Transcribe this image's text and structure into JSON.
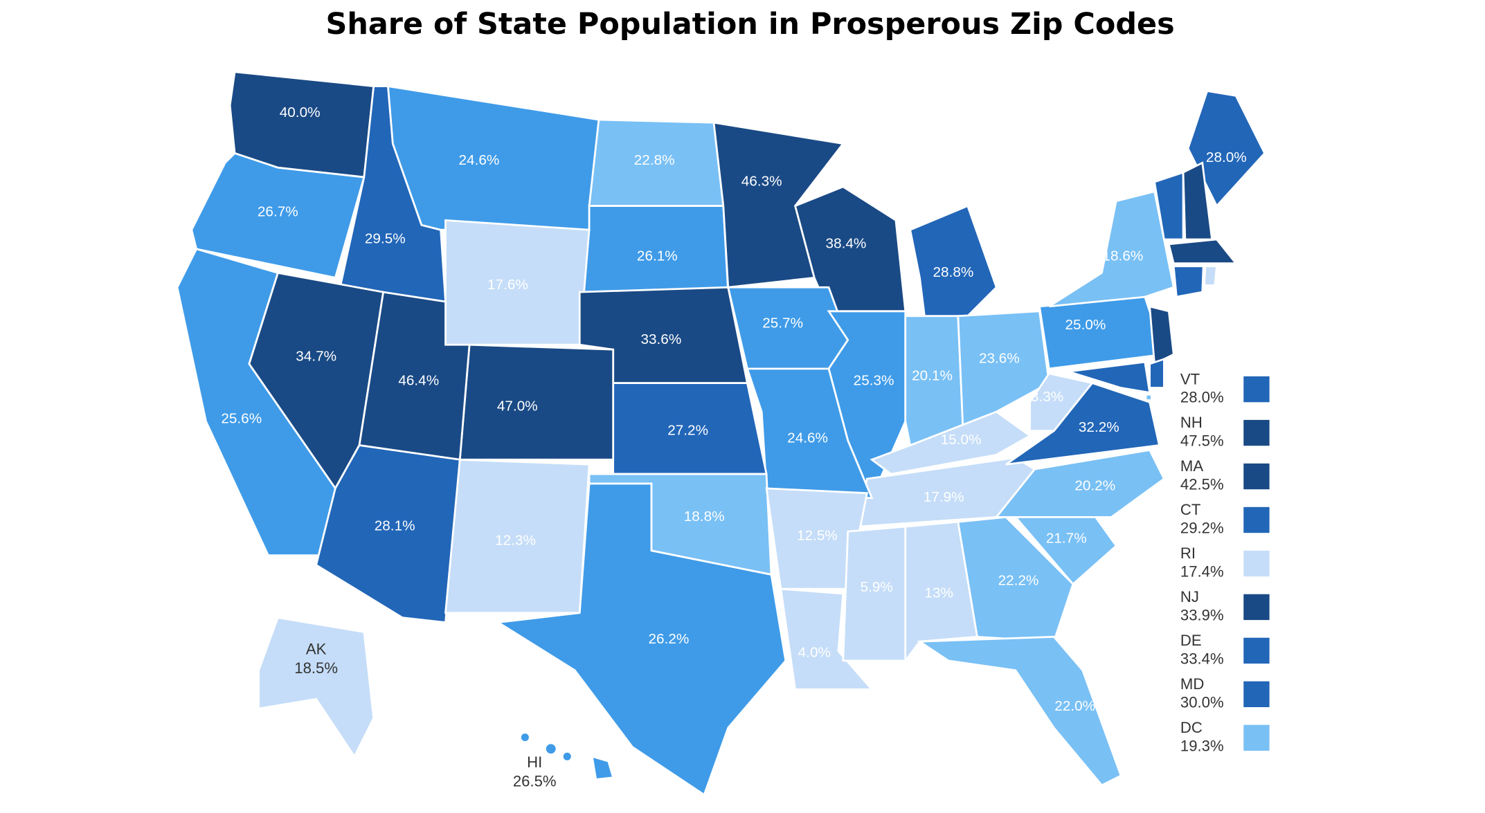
{
  "chart_data": {
    "type": "choropleth",
    "title": "Share of State Population in Prosperous Zip Codes",
    "regions": [
      {
        "value": 40.0,
        "value_label": "40.0%",
        "color": "#1a4a85"
      },
      {
        "value": 26.7,
        "value_label": "26.7%",
        "color": "#3f9be8"
      },
      {
        "value": 29.5,
        "value_label": "29.5%",
        "color": "#2266b8"
      },
      {
        "value": 24.6,
        "value_label": "24.6%",
        "color": "#3f9be8"
      },
      {
        "value": 22.8,
        "value_label": "22.8%",
        "color": "#79c0f5"
      },
      {
        "value": 26.1,
        "value_label": "26.1%",
        "color": "#3f9be8"
      },
      {
        "value": 17.6,
        "value_label": "17.6%",
        "color": "#c5ddf8"
      },
      {
        "value": 33.6,
        "value_label": "33.6%",
        "color": "#1a4a85"
      },
      {
        "value": 46.3,
        "value_label": "46.3%",
        "color": "#1a4a85"
      },
      {
        "value": 38.4,
        "value_label": "38.4%",
        "color": "#1a4a85"
      },
      {
        "value": 28.8,
        "value_label": "28.8%",
        "color": "#2266b8"
      },
      {
        "value": 25.7,
        "value_label": "25.7%",
        "color": "#3f9be8"
      },
      {
        "value": 25.3,
        "value_label": "25.3%",
        "color": "#3f9be8"
      },
      {
        "value": 20.1,
        "value_label": "20.1%",
        "color": "#79c0f5"
      },
      {
        "value": 23.6,
        "value_label": "23.6%",
        "color": "#79c0f5"
      },
      {
        "value": 15.0,
        "value_label": "15.0%",
        "color": "#c5ddf8"
      },
      {
        "value": 17.9,
        "value_label": "17.9%",
        "color": "#c5ddf8"
      },
      {
        "value": 24.6,
        "value_label": "24.6%",
        "color": "#3f9be8"
      },
      {
        "value": 27.2,
        "value_label": "27.2%",
        "color": "#2266b8"
      },
      {
        "value": 47.0,
        "value_label": "47.0%",
        "color": "#1a4a85"
      },
      {
        "value": 46.4,
        "value_label": "46.4%",
        "color": "#1a4a85"
      },
      {
        "value": 34.7,
        "value_label": "34.7%",
        "color": "#1a4a85"
      },
      {
        "value": 25.6,
        "value_label": "25.6%",
        "color": "#3f9be8"
      },
      {
        "value": 28.1,
        "value_label": "28.1%",
        "color": "#2266b8"
      },
      {
        "value": 12.3,
        "value_label": "12.3%",
        "color": "#c5ddf8"
      },
      {
        "value": 26.2,
        "value_label": "26.2%",
        "color": "#3f9be8"
      },
      {
        "value": 18.8,
        "value_label": "18.8%",
        "color": "#79c0f5"
      },
      {
        "value": 12.5,
        "value_label": "12.5%",
        "color": "#c5ddf8"
      },
      {
        "value": 4.0,
        "value_label": "4.0%",
        "color": "#c5ddf8"
      },
      {
        "value": 5.9,
        "value_label": "5.9%",
        "color": "#c5ddf8"
      },
      {
        "value": 13,
        "value_label": "13%",
        "color": "#c5ddf8"
      },
      {
        "value": 22.2,
        "value_label": "22.2%",
        "color": "#79c0f5"
      },
      {
        "value": 22.0,
        "value_label": "22.0%",
        "color": "#79c0f5"
      },
      {
        "value": 21.7,
        "value_label": "21.7%",
        "color": "#79c0f5"
      },
      {
        "value": 20.2,
        "value_label": "20.2%",
        "color": "#79c0f5"
      },
      {
        "value": 32.2,
        "value_label": "32.2%",
        "color": "#2266b8"
      },
      {
        "value": 3.3,
        "value_label": "3.3%",
        "color": "#c5ddf8"
      },
      {
        "value": 25.0,
        "value_label": "25.0%",
        "color": "#3f9be8"
      },
      {
        "value": 18.6,
        "value_label": "18.6%",
        "color": "#79c0f5"
      },
      {
        "value": 28.0,
        "value_label": "28.0%",
        "color": "#2266b8"
      },
      {
        "code": "VT",
        "value": 28.0,
        "value_label": "28.0%",
        "color": "#2266b8"
      },
      {
        "code": "NH",
        "value": 47.5,
        "value_label": "47.5%",
        "color": "#1a4a85"
      },
      {
        "code": "MA",
        "value": 42.5,
        "value_label": "42.5%",
        "color": "#1a4a85"
      },
      {
        "code": "CT",
        "value": 29.2,
        "value_label": "29.2%",
        "color": "#2266b8"
      },
      {
        "code": "RI",
        "value": 17.4,
        "value_label": "17.4%",
        "color": "#c5ddf8"
      },
      {
        "code": "NJ",
        "value": 33.9,
        "value_label": "33.9%",
        "color": "#1a4a85"
      },
      {
        "code": "DE",
        "value": 33.4,
        "value_label": "33.4%",
        "color": "#2266b8"
      },
      {
        "code": "MD",
        "value": 30.0,
        "value_label": "30.0%",
        "color": "#2266b8"
      },
      {
        "code": "DC",
        "value": 19.3,
        "value_label": "19.3%",
        "color": "#79c0f5"
      },
      {
        "code": "AK",
        "value": 18.5,
        "value_label": "18.5%",
        "color": "#c5ddf8"
      },
      {
        "code": "HI",
        "value": 26.5,
        "value_label": "26.5%",
        "color": "#3f9be8"
      }
    ]
  }
}
